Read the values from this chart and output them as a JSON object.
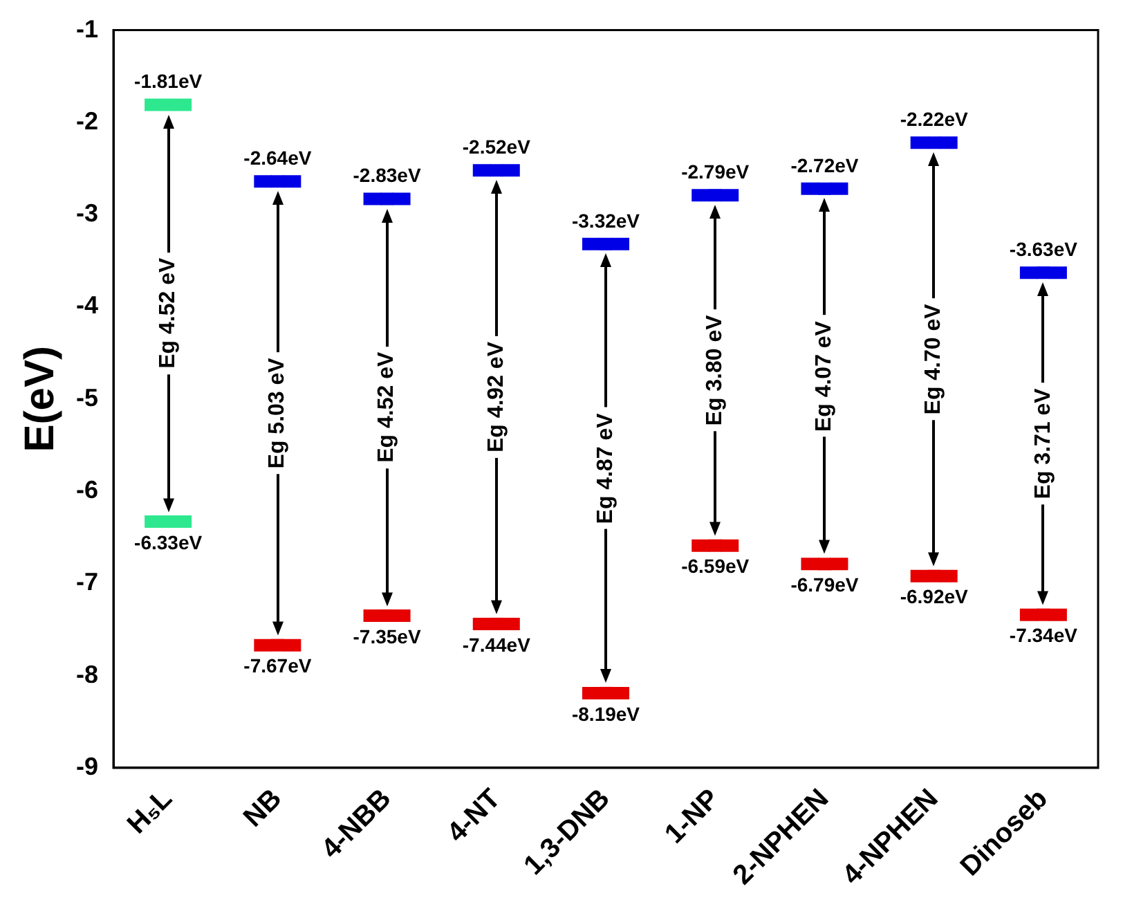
{
  "chart_data": {
    "type": "scatter",
    "ylabel": "E(eV)",
    "categories": [
      "H₅L",
      "NB",
      "4-NBB",
      "4-NT",
      "1,3-DNB",
      "1-NP",
      "2-NPHEN",
      "4-NPHEN",
      "Dinoseb"
    ],
    "series": [
      {
        "colors": [
          "#2ee88f",
          "#0000e6",
          "#0000e6",
          "#0000e6",
          "#0000e6",
          "#0000e6",
          "#0000e6",
          "#0000e6",
          "#0000e6"
        ],
        "values": [
          -1.81,
          -2.64,
          -2.83,
          -2.52,
          -3.32,
          -2.79,
          -2.72,
          -2.22,
          -3.63
        ],
        "value_labels": [
          "-1.81eV",
          "-2.64eV",
          "-2.83eV",
          "-2.52eV",
          "-3.32eV",
          "-2.79eV",
          "-2.72eV",
          "-2.22eV",
          "-3.63eV"
        ]
      },
      {
        "colors": [
          "#2ee88f",
          "#e60000",
          "#e60000",
          "#e60000",
          "#e60000",
          "#e60000",
          "#e60000",
          "#e60000",
          "#e60000"
        ],
        "values": [
          -6.33,
          -7.67,
          -7.35,
          -7.44,
          -8.19,
          -6.59,
          -6.79,
          -6.92,
          -7.34
        ],
        "value_labels": [
          "-6.33eV",
          "-7.67eV",
          "-7.35eV",
          "-7.44eV",
          "-8.19eV",
          "-6.59eV",
          "-6.79eV",
          "-6.92eV",
          "-7.34eV"
        ]
      }
    ],
    "annotations": [
      "Eg 4.52 eV",
      "Eg 5.03 eV",
      "Eg 4.52 eV",
      "Eg 4.92 eV",
      "Eg 4.87 eV",
      "Eg 3.80 eV",
      "Eg 4.07 eV",
      "Eg 4.70 eV",
      "Eg 3.71 eV"
    ],
    "ylim": [
      -9,
      -1
    ],
    "yticks": [
      -9,
      -8,
      -7,
      -6,
      -5,
      -4,
      -3,
      -2,
      -1
    ],
    "grid": false,
    "legend": false
  }
}
